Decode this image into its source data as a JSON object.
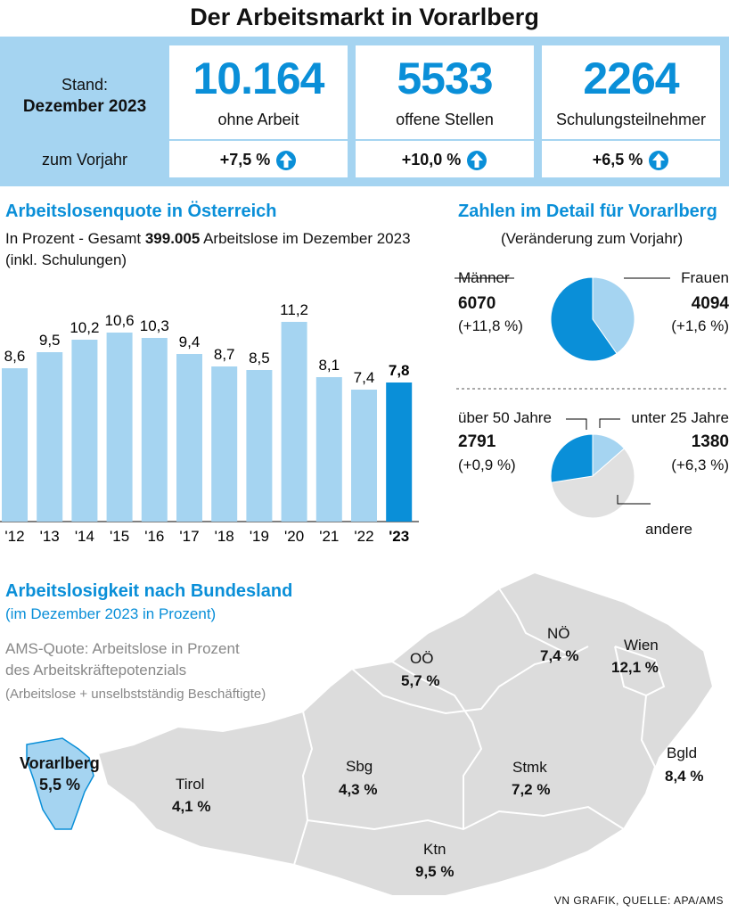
{
  "title": "Der Arbeitsmarkt in Vorarlberg",
  "summary": {
    "stand_label": "Stand:",
    "stand_date": "Dezember 2023",
    "vorjahr_label": "zum Vorjahr",
    "items": [
      {
        "value": "10.164",
        "label": "ohne Arbeit",
        "change": "+7,5 %"
      },
      {
        "value": "5533",
        "label": "offene Stellen",
        "change": "+10,0 %"
      },
      {
        "value": "2264",
        "label": "Schulungsteilnehmer",
        "change": "+6,5 %"
      }
    ]
  },
  "colors": {
    "accent": "#0a8fd8",
    "light": "#a5d4f1",
    "grey": "#e0e0e0",
    "map": "#dcdcdc"
  },
  "quote": {
    "heading": "Arbeitslosenquote in Österreich",
    "desc1_pre": "In Prozent - Gesamt ",
    "desc1_bold": "399.005",
    "desc1_post": " Arbeitslose im Dezember 2023",
    "desc2": "(inkl. Schulungen)"
  },
  "chart_data": {
    "type": "bar",
    "title": "Arbeitslosenquote in Österreich",
    "categories": [
      "'12",
      "'13",
      "'14",
      "'15",
      "'16",
      "'17",
      "'18",
      "'19",
      "'20",
      "'21",
      "'22",
      "'23"
    ],
    "values": [
      8.6,
      9.5,
      10.2,
      10.6,
      10.3,
      9.4,
      8.7,
      8.5,
      11.2,
      8.1,
      7.4,
      7.8
    ],
    "value_labels": [
      "8,6",
      "9,5",
      "10,2",
      "10,6",
      "10,3",
      "9,4",
      "8,7",
      "8,5",
      "11,2",
      "8,1",
      "7,4",
      "7,8"
    ],
    "highlight_index": 11,
    "ylim": [
      0,
      12
    ],
    "xlabel": "",
    "ylabel": "Prozent"
  },
  "detail": {
    "heading": "Zahlen im Detail für Vorarlberg",
    "sub": "(Veränderung zum Vorjahr)",
    "gender": [
      {
        "label": "Männer",
        "value": "6070",
        "change": "(+11,8 %)",
        "count": 6070
      },
      {
        "label": "Frauen",
        "value": "4094",
        "change": "(+1,6 %)",
        "count": 4094
      }
    ],
    "age": [
      {
        "label": "über 50 Jahre",
        "value": "2791",
        "change": "(+0,9 %)",
        "count": 2791
      },
      {
        "label": "unter 25 Jahre",
        "value": "1380",
        "change": "(+6,3 %)",
        "count": 1380
      },
      {
        "label": "andere",
        "count": 5993
      }
    ]
  },
  "map": {
    "heading": "Arbeitslosigkeit nach Bundesland",
    "sub": "(im Dezember 2023 in Prozent)",
    "note1": "AMS-Quote: Arbeitslose in Prozent",
    "note2": "des Arbeitskräftepotenzials",
    "note3": "(Arbeitslose + unselbstständig Beschäftigte)",
    "states": [
      {
        "name": "Vorarlberg",
        "value": "5,5 %"
      },
      {
        "name": "Tirol",
        "value": "4,1 %"
      },
      {
        "name": "Sbg",
        "value": "4,3 %"
      },
      {
        "name": "OÖ",
        "value": "5,7 %"
      },
      {
        "name": "NÖ",
        "value": "7,4 %"
      },
      {
        "name": "Wien",
        "value": "12,1 %"
      },
      {
        "name": "Bgld",
        "value": "8,4 %"
      },
      {
        "name": "Stmk",
        "value": "7,2 %"
      },
      {
        "name": "Ktn",
        "value": "9,5 %"
      }
    ]
  },
  "source": "VN GRAFIK, QUELLE: APA/AMS"
}
